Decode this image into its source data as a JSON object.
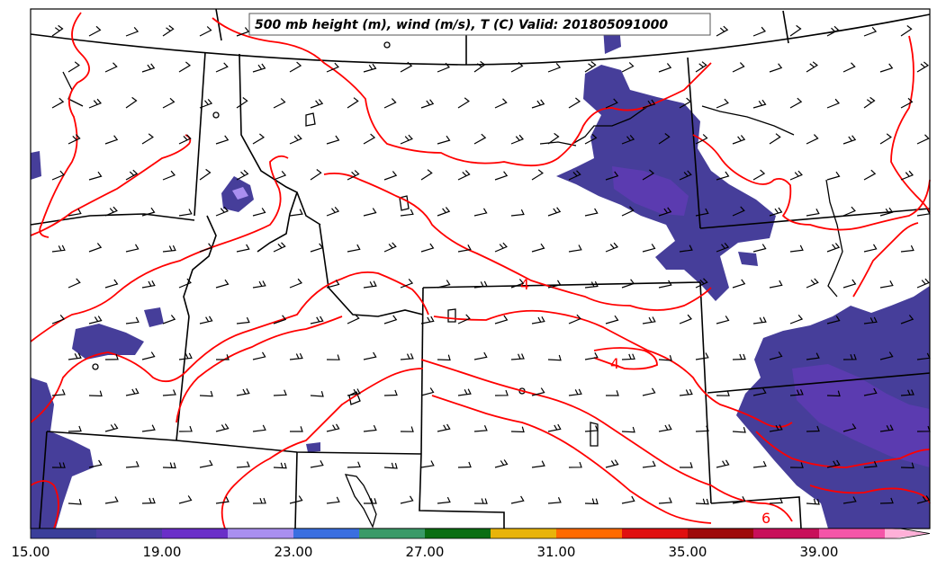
{
  "title": "500 mb height (m), wind (m/s), T (C) Valid: 201805091000",
  "colorbar": {
    "tick_labels": [
      "15.00",
      "19.00",
      "23.00",
      "27.00",
      "31.00",
      "35.00",
      "39.00"
    ],
    "segments": [
      "#3b3f9a",
      "#4c3ea6",
      "#6a2fc8",
      "#a98ff0",
      "#3a6fe0",
      "#3a9a68",
      "#0a6e12",
      "#e8b40a",
      "#ff6a00",
      "#e01010",
      "#9e0a0a",
      "#c8105a",
      "#f455a8",
      "#ffb0d8"
    ]
  },
  "contour_labels": [
    "4",
    "4",
    "6"
  ],
  "colors": {
    "fill_primary": "#463e9a",
    "fill_secondary": "#5b3bb0",
    "contour": "#ff0000",
    "border": "#000000"
  }
}
